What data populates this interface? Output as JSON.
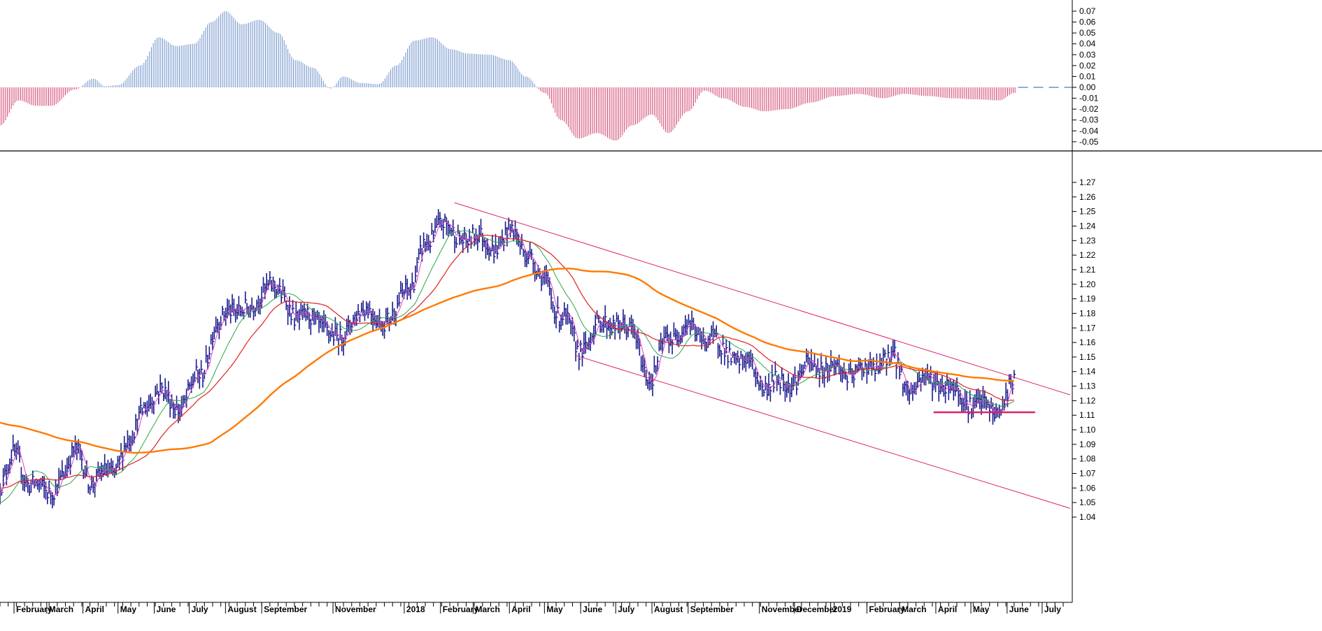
{
  "colors": {
    "background": "#ffffff",
    "price_bars": "#1a1a8c",
    "ma_fast": "#e040c0",
    "ma_medium": "#2aa84a",
    "ma_slow": "#e02020",
    "ma_long": "#ff7a00",
    "osc_positive": "#6c8fc8",
    "osc_negative": "#d0406a",
    "trendline": "#e0206a",
    "support": "#e0206a",
    "axis": "#000000"
  },
  "chart_data": [
    {
      "type": "bar",
      "panel": "oscillator",
      "ylim": [
        -0.06,
        0.075
      ],
      "yticks": [
        "0.07",
        "0.06",
        "0.05",
        "0.04",
        "0.03",
        "0.02",
        "0.01",
        "0.00",
        "-0.01",
        "-0.02",
        "-0.03",
        "-0.04",
        "-0.05"
      ],
      "x": [
        "2017-01-20",
        "2017-02-05",
        "2017-02-20",
        "2017-03-05",
        "2017-03-25",
        "2017-04-10",
        "2017-04-20",
        "2017-05-01",
        "2017-05-20",
        "2017-06-05",
        "2017-06-20",
        "2017-07-05",
        "2017-07-20",
        "2017-08-01",
        "2017-08-15",
        "2017-08-30",
        "2017-09-15",
        "2017-09-30",
        "2017-10-15",
        "2017-10-30",
        "2017-11-10",
        "2017-11-25",
        "2017-12-10",
        "2017-12-25",
        "2018-01-10",
        "2018-01-25",
        "2018-02-10",
        "2018-02-25",
        "2018-03-15",
        "2018-04-01",
        "2018-04-15",
        "2018-05-01",
        "2018-05-15",
        "2018-05-30",
        "2018-06-15",
        "2018-07-01",
        "2018-07-15",
        "2018-08-01",
        "2018-08-15",
        "2018-09-01",
        "2018-09-15",
        "2018-10-01",
        "2018-10-20",
        "2018-11-05",
        "2018-11-25",
        "2018-12-15",
        "2019-01-05",
        "2019-01-25",
        "2019-02-15",
        "2019-03-05",
        "2019-03-25",
        "2019-04-15",
        "2019-05-05",
        "2019-05-25",
        "2019-06-08"
      ],
      "values": [
        -0.035,
        -0.012,
        -0.017,
        -0.017,
        -0.002,
        0.008,
        0.001,
        0.002,
        0.02,
        0.046,
        0.038,
        0.04,
        0.06,
        0.07,
        0.058,
        0.062,
        0.05,
        0.025,
        0.018,
        -0.001,
        0.01,
        0.004,
        0.003,
        0.02,
        0.043,
        0.046,
        0.035,
        0.031,
        0.03,
        0.025,
        0.01,
        -0.005,
        -0.03,
        -0.047,
        -0.042,
        -0.049,
        -0.035,
        -0.025,
        -0.042,
        -0.022,
        -0.003,
        -0.01,
        -0.018,
        -0.022,
        -0.02,
        -0.014,
        -0.008,
        -0.006,
        -0.01,
        -0.006,
        -0.008,
        -0.01,
        -0.011,
        -0.012,
        -0.005
      ]
    },
    {
      "type": "line",
      "panel": "price",
      "ylim": [
        1.035,
        1.275
      ],
      "yticks": [
        "1.27",
        "1.26",
        "1.25",
        "1.24",
        "1.23",
        "1.22",
        "1.21",
        "1.20",
        "1.19",
        "1.18",
        "1.17",
        "1.16",
        "1.15",
        "1.14",
        "1.13",
        "1.12",
        "1.11",
        "1.10",
        "1.09",
        "1.08",
        "1.07",
        "1.06",
        "1.05",
        "1.04"
      ],
      "x": [
        "2017-01-20",
        "2017-02-01",
        "2017-02-15",
        "2017-03-01",
        "2017-03-15",
        "2017-03-28",
        "2017-04-10",
        "2017-04-25",
        "2017-05-10",
        "2017-05-25",
        "2017-06-10",
        "2017-06-25",
        "2017-07-10",
        "2017-07-25",
        "2017-08-05",
        "2017-08-20",
        "2017-09-05",
        "2017-09-20",
        "2017-10-05",
        "2017-10-20",
        "2017-11-05",
        "2017-11-20",
        "2017-12-05",
        "2017-12-20",
        "2018-01-05",
        "2018-01-20",
        "2018-02-01",
        "2018-02-15",
        "2018-03-01",
        "2018-03-15",
        "2018-04-01",
        "2018-04-15",
        "2018-05-01",
        "2018-05-15",
        "2018-05-30",
        "2018-06-15",
        "2018-07-01",
        "2018-07-15",
        "2018-08-01",
        "2018-08-15",
        "2018-09-01",
        "2018-09-15",
        "2018-10-01",
        "2018-10-20",
        "2018-11-10",
        "2018-11-30",
        "2018-12-20",
        "2019-01-10",
        "2019-01-30",
        "2019-02-20",
        "2019-03-10",
        "2019-03-30",
        "2019-04-20",
        "2019-05-10",
        "2019-05-25",
        "2019-06-07"
      ],
      "values": [
        1.065,
        1.08,
        1.065,
        1.055,
        1.07,
        1.085,
        1.063,
        1.072,
        1.09,
        1.12,
        1.125,
        1.115,
        1.14,
        1.17,
        1.185,
        1.18,
        1.2,
        1.19,
        1.175,
        1.175,
        1.16,
        1.18,
        1.18,
        1.175,
        1.2,
        1.225,
        1.245,
        1.23,
        1.235,
        1.225,
        1.235,
        1.225,
        1.2,
        1.18,
        1.155,
        1.17,
        1.175,
        1.165,
        1.135,
        1.165,
        1.17,
        1.165,
        1.155,
        1.145,
        1.13,
        1.135,
        1.145,
        1.14,
        1.14,
        1.15,
        1.13,
        1.135,
        1.125,
        1.115,
        1.115,
        1.13
      ],
      "series": []
    }
  ],
  "x_axis": {
    "labels": [
      "February",
      "March",
      "April",
      "May",
      "June",
      "July",
      "August",
      "September",
      "November",
      "2018",
      "February",
      "March",
      "April",
      "May",
      "June",
      "July",
      "August",
      "September",
      "November",
      "December",
      "2019",
      "February",
      "March",
      "April",
      "May",
      "June",
      "July"
    ],
    "dates": [
      "2017-02-01",
      "2017-03-01",
      "2017-04-01",
      "2017-05-01",
      "2017-06-01",
      "2017-07-01",
      "2017-08-01",
      "2017-09-01",
      "2017-11-01",
      "2018-01-01",
      "2018-02-01",
      "2018-03-01",
      "2018-04-01",
      "2018-05-01",
      "2018-06-01",
      "2018-07-01",
      "2018-08-01",
      "2018-09-01",
      "2018-11-01",
      "2018-12-01",
      "2019-01-01",
      "2019-02-01",
      "2019-03-01",
      "2019-04-01",
      "2019-05-01",
      "2019-06-01",
      "2019-07-01"
    ]
  }
}
